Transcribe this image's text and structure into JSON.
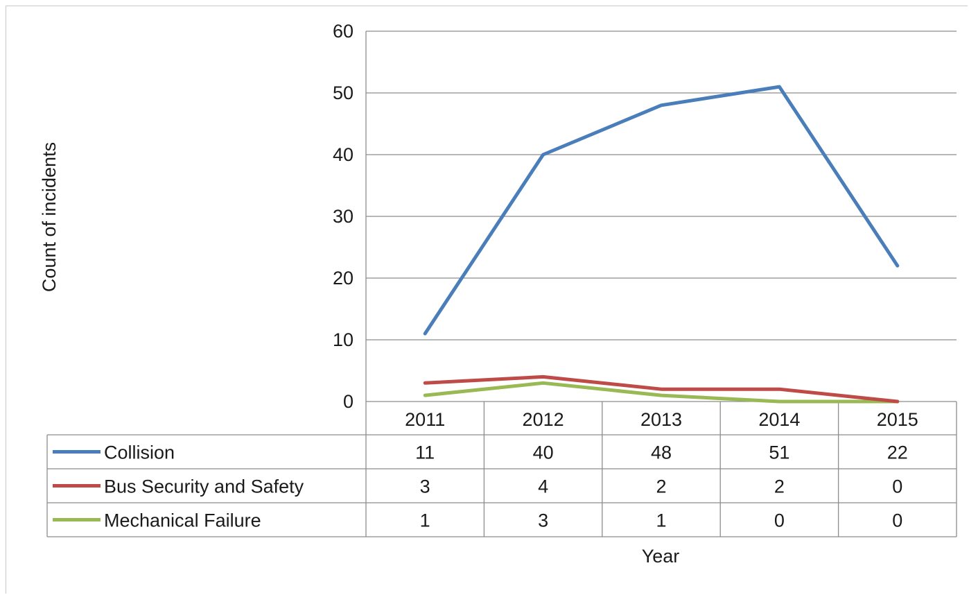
{
  "chart_data": {
    "type": "line",
    "title": "",
    "xlabel": "Year",
    "ylabel": "Count of incidents",
    "ylim": [
      0,
      60
    ],
    "yticks": [
      "0",
      "10",
      "20",
      "30",
      "40",
      "50",
      "60"
    ],
    "grid": true,
    "legend": "data-table",
    "categories": [
      "2011",
      "2012",
      "2013",
      "2014",
      "2015"
    ],
    "series": [
      {
        "name": "Collision",
        "color": "#4a7ebb",
        "values": [
          11,
          40,
          48,
          51,
          22
        ]
      },
      {
        "name": "Bus Security and Safety",
        "color": "#be4b48",
        "values": [
          3,
          4,
          2,
          2,
          0
        ]
      },
      {
        "name": "Mechanical Failure",
        "color": "#98b954",
        "values": [
          1,
          3,
          1,
          0,
          0
        ]
      }
    ]
  }
}
